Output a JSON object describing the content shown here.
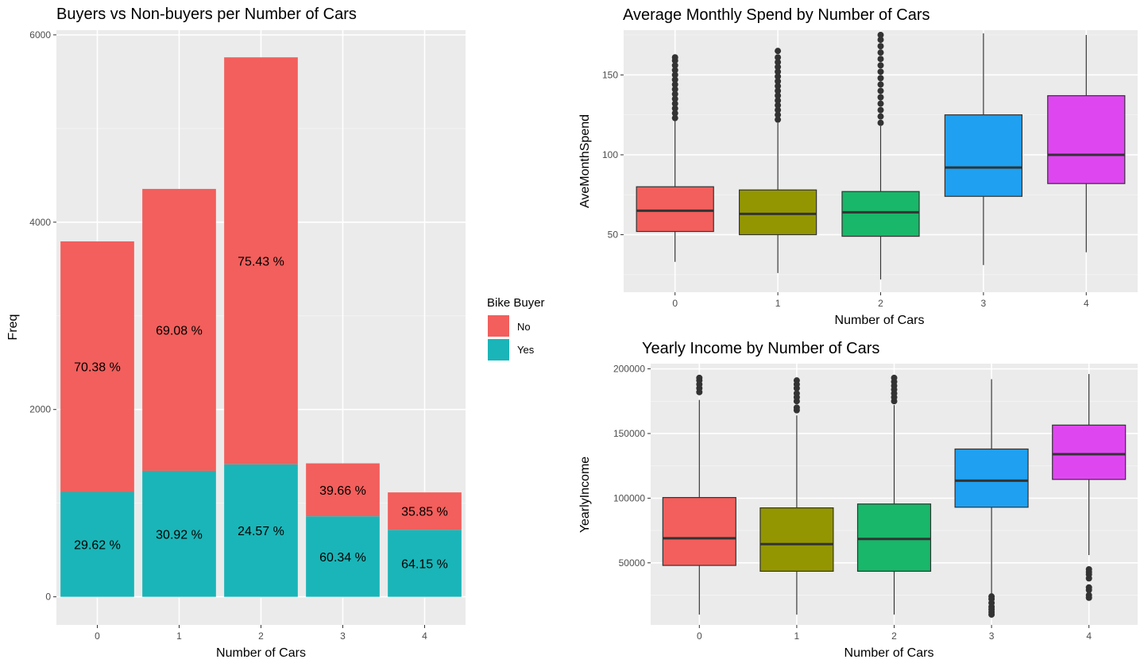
{
  "chart_data": [
    {
      "type": "bar",
      "title": "Buyers vs Non-buyers per Number of Cars",
      "xlabel": "Number of Cars",
      "ylabel": "Freq",
      "categories": [
        "0",
        "1",
        "2",
        "3",
        "4"
      ],
      "ylim": [
        -300,
        6050
      ],
      "yticks": [
        0,
        2000,
        4000,
        6000
      ],
      "stacked": true,
      "series": [
        {
          "name": "Yes",
          "color": "#1AB5B8",
          "values": [
            1120,
            1345,
            1415,
            860,
            715
          ],
          "labels": [
            "29.62 %",
            "30.92 %",
            "24.57 %",
            "60.34 %",
            "64.15 %"
          ]
        },
        {
          "name": "No",
          "color": "#F25F5C",
          "values": [
            2675,
            3010,
            4345,
            565,
            400
          ],
          "labels": [
            "70.38 %",
            "69.08 %",
            "75.43 %",
            "39.66 %",
            "35.85 %"
          ]
        }
      ],
      "legend": {
        "title": "Bike Buyer",
        "entries": [
          "No",
          "Yes"
        ],
        "placement": "right"
      },
      "grid": true
    },
    {
      "type": "box",
      "title": "Average Monthly Spend by Number of Cars",
      "xlabel": "Number of Cars",
      "ylabel": "AveMonthSpend",
      "categories": [
        "0",
        "1",
        "2",
        "3",
        "4"
      ],
      "ylim": [
        14,
        178
      ],
      "yticks": [
        50,
        100,
        150
      ],
      "colors": [
        "#F25F5C",
        "#939600",
        "#19B769",
        "#1FA0F0",
        "#DE47F0"
      ],
      "boxes": [
        {
          "lower_whisker": 33,
          "q1": 52,
          "median": 65,
          "q3": 80,
          "upper_whisker": 122,
          "outliers": [
            123,
            126,
            129,
            132,
            135,
            138,
            141,
            144,
            147,
            150,
            153,
            156,
            159,
            161
          ]
        },
        {
          "lower_whisker": 26,
          "q1": 50,
          "median": 63,
          "q3": 78,
          "upper_whisker": 120,
          "outliers": [
            122,
            125,
            128,
            131,
            134,
            137,
            140,
            143,
            146,
            149,
            152,
            155,
            158,
            161,
            165
          ]
        },
        {
          "lower_whisker": 22,
          "q1": 49,
          "median": 64,
          "q3": 77,
          "upper_whisker": 118,
          "outliers": [
            120,
            124,
            128,
            132,
            136,
            140,
            144,
            148,
            152,
            156,
            160,
            164,
            168,
            172,
            175
          ]
        },
        {
          "lower_whisker": 31,
          "q1": 74,
          "median": 92,
          "q3": 125,
          "upper_whisker": 176,
          "outliers": []
        },
        {
          "lower_whisker": 39,
          "q1": 82,
          "median": 100,
          "q3": 137,
          "upper_whisker": 175,
          "outliers": []
        }
      ],
      "grid": true
    },
    {
      "type": "box",
      "title": "Yearly Income by Number of Cars",
      "xlabel": "Number of Cars",
      "ylabel": "YearlyIncome",
      "categories": [
        "0",
        "1",
        "2",
        "3",
        "4"
      ],
      "ylim": [
        2000,
        204000
      ],
      "yticks": [
        50000,
        100000,
        150000,
        200000
      ],
      "colors": [
        "#F25F5C",
        "#939600",
        "#19B769",
        "#1FA0F0",
        "#DE47F0"
      ],
      "boxes": [
        {
          "lower_whisker": 10000,
          "q1": 48000,
          "median": 69000,
          "q3": 100500,
          "upper_whisker": 176000,
          "outliers": [
            182000,
            185000,
            188000,
            191000,
            193000
          ]
        },
        {
          "lower_whisker": 10000,
          "q1": 43500,
          "median": 64500,
          "q3": 92500,
          "upper_whisker": 164000,
          "outliers": [
            168000,
            170000,
            175000,
            178000,
            181000,
            185000,
            188000,
            191000
          ]
        },
        {
          "lower_whisker": 10000,
          "q1": 43500,
          "median": 68500,
          "q3": 95500,
          "upper_whisker": 172000,
          "outliers": [
            175000,
            178000,
            181000,
            184000,
            187000,
            190000,
            193000
          ]
        },
        {
          "lower_whisker": 25000,
          "q1": 93000,
          "median": 113500,
          "q3": 138000,
          "upper_whisker": 192000,
          "outliers": [
            10000,
            12000,
            14000,
            16000,
            19000,
            22000,
            24000
          ]
        },
        {
          "lower_whisker": 56000,
          "q1": 114500,
          "median": 134000,
          "q3": 156500,
          "upper_whisker": 196000,
          "outliers": [
            23000,
            25000,
            29000,
            31000,
            38000,
            41000,
            43000,
            45000
          ]
        }
      ],
      "grid": true
    }
  ]
}
